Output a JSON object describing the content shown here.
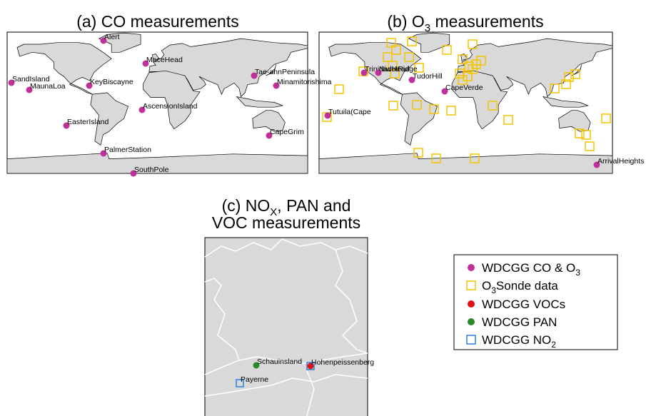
{
  "panels": [
    {
      "title": [
        "(a) CO measurements"
      ],
      "stations": [
        "Alert",
        "MaceHead",
        "SandIsland",
        "MaunaLoa",
        "KeyBiscayne",
        "Tae-ahnPeninsula",
        "Minamitorishima",
        "AscensionIsland",
        "EasterIsland",
        "CapeGrim",
        "PalmerStation",
        "SouthPole"
      ]
    },
    {
      "title": [
        "(b) O",
        "3",
        " measurements"
      ],
      "stations": [
        "TrinidadHead",
        "NiwotRidge",
        "TudorHill",
        "CapeVerde",
        "Tutuila(Cape",
        "ArrivalHeights"
      ]
    },
    {
      "title": [
        "(c) NO",
        "X",
        ", PAN and"
      ],
      "title_line2": "VOC measurements",
      "stations": [
        "Schauinsland",
        "Hohenpeissenberg",
        "Payerne"
      ]
    }
  ],
  "legend": [
    [
      "WDCGG CO & O",
      "3"
    ],
    [
      "O",
      "3",
      "Sonde data"
    ],
    [
      "WDCGG VOCs"
    ],
    [
      "WDCGG PAN"
    ],
    [
      "WDCGG NO",
      "2"
    ]
  ]
}
